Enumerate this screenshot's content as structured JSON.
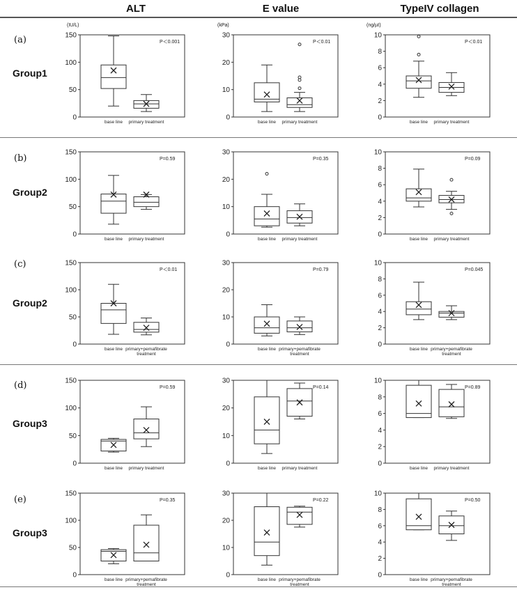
{
  "columns": {
    "alt": "ALT",
    "evalue": "E value",
    "collagen": "TypeIV collagen"
  },
  "units": {
    "alt": "(IU/L)",
    "evalue": "(kPa)",
    "collagen": "(ng/µℓ)"
  },
  "rows": [
    {
      "label": "(a)",
      "group": "Group1"
    },
    {
      "label": "(b)",
      "group": "Group2"
    },
    {
      "label": "(c)",
      "group": "Group2"
    },
    {
      "label": "(d)",
      "group": "Group3"
    },
    {
      "label": "(e)",
      "group": "Group3"
    }
  ],
  "chart_data": [
    {
      "type": "box",
      "title": "ALT",
      "row": "(a)",
      "ylim": [
        0,
        150
      ],
      "yticks": [
        0,
        50,
        100,
        150
      ],
      "pvalue": "P＜0.001",
      "categories": [
        "base line",
        "primary treatment"
      ],
      "boxes": [
        {
          "min": 20,
          "q1": 52,
          "median": 72,
          "q3": 95,
          "max": 148,
          "mean": 85,
          "outliers": []
        },
        {
          "min": 10,
          "q1": 16,
          "median": 24,
          "q3": 30,
          "max": 41,
          "mean": 24,
          "outliers": []
        }
      ]
    },
    {
      "type": "box",
      "title": "E value",
      "row": "(a)",
      "ylim": [
        0,
        30
      ],
      "yticks": [
        0,
        10,
        20,
        30
      ],
      "pvalue": "P＜0.01",
      "categories": [
        "base line",
        "primary treatment"
      ],
      "boxes": [
        {
          "min": 2,
          "q1": 5.5,
          "median": 6.5,
          "q3": 12.5,
          "max": 19,
          "mean": 8.2,
          "outliers": []
        },
        {
          "min": 2,
          "q1": 3.5,
          "median": 4.5,
          "q3": 7,
          "max": 9,
          "mean": 6,
          "outliers": [
            10.5,
            13.5,
            14.5,
            26.5
          ]
        }
      ]
    },
    {
      "type": "box",
      "title": "TypeIV collagen",
      "row": "(a)",
      "ylim": [
        0,
        10
      ],
      "yticks": [
        0,
        2,
        4,
        6,
        8,
        10
      ],
      "pvalue": "P＜0.01",
      "categories": [
        "base line",
        "primary treatment"
      ],
      "boxes": [
        {
          "min": 2.4,
          "q1": 3.5,
          "median": 4.4,
          "q3": 5,
          "max": 6.8,
          "mean": 4.5,
          "outliers": [
            7.6,
            9.8
          ]
        },
        {
          "min": 2.6,
          "q1": 3,
          "median": 3.6,
          "q3": 4.2,
          "max": 5.4,
          "mean": 3.7,
          "outliers": []
        }
      ]
    },
    {
      "type": "box",
      "title": "ALT",
      "row": "(b)",
      "ylim": [
        0,
        150
      ],
      "yticks": [
        0,
        50,
        100,
        150
      ],
      "pvalue": "P=0.59",
      "categories": [
        "base line",
        "primary treatment"
      ],
      "boxes": [
        {
          "min": 18,
          "q1": 38,
          "median": 60,
          "q3": 73,
          "max": 107,
          "mean": 72,
          "outliers": []
        },
        {
          "min": 45,
          "q1": 50,
          "median": 58,
          "q3": 68,
          "max": 72,
          "mean": 72,
          "outliers": []
        }
      ]
    },
    {
      "type": "box",
      "title": "E value",
      "row": "(b)",
      "ylim": [
        0,
        30
      ],
      "yticks": [
        0,
        10,
        20,
        30
      ],
      "pvalue": "P=0.35",
      "categories": [
        "base line",
        "primary treatment"
      ],
      "boxes": [
        {
          "min": 2.5,
          "q1": 3,
          "median": 5.5,
          "q3": 10,
          "max": 14.5,
          "mean": 7.5,
          "outliers": [
            22
          ]
        },
        {
          "min": 3,
          "q1": 4,
          "median": 6,
          "q3": 8.5,
          "max": 11,
          "mean": 6.3,
          "outliers": []
        }
      ]
    },
    {
      "type": "box",
      "title": "TypeIV collagen",
      "row": "(b)",
      "ylim": [
        0,
        10
      ],
      "yticks": [
        0,
        2,
        4,
        6,
        8,
        10
      ],
      "pvalue": "P=0.09",
      "categories": [
        "base line",
        "primary treatment"
      ],
      "boxes": [
        {
          "min": 3.3,
          "q1": 4,
          "median": 4.4,
          "q3": 5.5,
          "max": 7.9,
          "mean": 5.1,
          "outliers": []
        },
        {
          "min": 3,
          "q1": 3.8,
          "median": 4.2,
          "q3": 4.7,
          "max": 5.2,
          "mean": 4.2,
          "outliers": [
            2.5,
            6.6
          ]
        }
      ]
    },
    {
      "type": "box",
      "title": "ALT",
      "row": "(c)",
      "ylim": [
        0,
        150
      ],
      "yticks": [
        0,
        50,
        100,
        150
      ],
      "pvalue": "P＜0.01",
      "categories": [
        "base line",
        "primary+pemafibrate treatment"
      ],
      "boxes": [
        {
          "min": 18,
          "q1": 38,
          "median": 63,
          "q3": 75,
          "max": 110,
          "mean": 75,
          "outliers": []
        },
        {
          "min": 17,
          "q1": 22,
          "median": 27,
          "q3": 40,
          "max": 48,
          "mean": 30,
          "outliers": []
        }
      ]
    },
    {
      "type": "box",
      "title": "E value",
      "row": "(c)",
      "ylim": [
        0,
        30
      ],
      "yticks": [
        0,
        10,
        20,
        30
      ],
      "pvalue": "P=0.79",
      "categories": [
        "base line",
        "primary+pemafibrate treatment"
      ],
      "boxes": [
        {
          "min": 3,
          "q1": 4,
          "median": 6,
          "q3": 10,
          "max": 14.5,
          "mean": 7.5,
          "outliers": []
        },
        {
          "min": 3.5,
          "q1": 4.5,
          "median": 6,
          "q3": 8.5,
          "max": 10,
          "mean": 6.3,
          "outliers": []
        }
      ]
    },
    {
      "type": "box",
      "title": "TypeIV collagen",
      "row": "(c)",
      "ylim": [
        0,
        10
      ],
      "yticks": [
        0,
        2,
        4,
        6,
        8,
        10
      ],
      "pvalue": "P=0.045",
      "categories": [
        "base line",
        "primary+pemafibrate treatment"
      ],
      "boxes": [
        {
          "min": 3,
          "q1": 3.6,
          "median": 4.3,
          "q3": 5.2,
          "max": 7.6,
          "mean": 4.8,
          "outliers": []
        },
        {
          "min": 3,
          "q1": 3.3,
          "median": 3.8,
          "q3": 4,
          "max": 4.7,
          "mean": 3.8,
          "outliers": []
        }
      ]
    },
    {
      "type": "box",
      "title": "ALT",
      "row": "(d)",
      "ylim": [
        0,
        150
      ],
      "yticks": [
        0,
        50,
        100,
        150
      ],
      "pvalue": "P=0.59",
      "categories": [
        "base line",
        "primary treatment"
      ],
      "boxes": [
        {
          "min": 20,
          "q1": 22,
          "median": 40,
          "q3": 43,
          "max": 45,
          "mean": 33,
          "outliers": []
        },
        {
          "min": 30,
          "q1": 44,
          "median": 55,
          "q3": 80,
          "max": 102,
          "mean": 60,
          "outliers": []
        }
      ]
    },
    {
      "type": "box",
      "title": "E value",
      "row": "(d)",
      "ylim": [
        0,
        30
      ],
      "yticks": [
        0,
        10,
        20,
        30
      ],
      "pvalue": "P=0.14",
      "categories": [
        "base line",
        "primary treatment"
      ],
      "boxes": [
        {
          "min": 3.5,
          "q1": 7,
          "median": 12,
          "q3": 24,
          "max": 30,
          "mean": 15,
          "outliers": []
        },
        {
          "min": 16,
          "q1": 17,
          "median": 22.5,
          "q3": 27,
          "max": 29,
          "mean": 22,
          "outliers": []
        }
      ]
    },
    {
      "type": "box",
      "title": "TypeIV collagen",
      "row": "(d)",
      "ylim": [
        0,
        10
      ],
      "yticks": [
        0,
        2,
        4,
        6,
        8,
        10
      ],
      "pvalue": "P=0.89",
      "categories": [
        "base line",
        "primary treatment"
      ],
      "boxes": [
        {
          "min": 5.5,
          "q1": 5.5,
          "median": 6,
          "q3": 9.4,
          "max": 10,
          "mean": 7.2,
          "outliers": []
        },
        {
          "min": 5.4,
          "q1": 5.6,
          "median": 6.8,
          "q3": 8.9,
          "max": 9.5,
          "mean": 7.1,
          "outliers": []
        }
      ]
    },
    {
      "type": "box",
      "title": "ALT",
      "row": "(e)",
      "ylim": [
        0,
        150
      ],
      "yticks": [
        0,
        50,
        100,
        150
      ],
      "pvalue": "P=0.35",
      "categories": [
        "base line",
        "primary+pemafibrate treatment"
      ],
      "boxes": [
        {
          "min": 20,
          "q1": 25,
          "median": 43,
          "q3": 46,
          "max": 48,
          "mean": 36,
          "outliers": []
        },
        {
          "min": 25,
          "q1": 25,
          "median": 40,
          "q3": 91,
          "max": 110,
          "mean": 55,
          "outliers": []
        }
      ]
    },
    {
      "type": "box",
      "title": "E value",
      "row": "(e)",
      "ylim": [
        0,
        30
      ],
      "yticks": [
        0,
        10,
        20,
        30
      ],
      "pvalue": "P=0.22",
      "categories": [
        "base line",
        "primary+pemafibrate treatment"
      ],
      "boxes": [
        {
          "min": 3.5,
          "q1": 7,
          "median": 12,
          "q3": 25,
          "max": 30,
          "mean": 15.5,
          "outliers": []
        },
        {
          "min": 17.5,
          "q1": 18.5,
          "median": 23,
          "q3": 24.8,
          "max": 25.2,
          "mean": 22,
          "outliers": []
        }
      ]
    },
    {
      "type": "box",
      "title": "TypeIV collagen",
      "row": "(e)",
      "ylim": [
        0,
        10
      ],
      "yticks": [
        0,
        2,
        4,
        6,
        8,
        10
      ],
      "pvalue": "P=0.50",
      "categories": [
        "base line",
        "primary+pemafibrate treatment"
      ],
      "boxes": [
        {
          "min": 5.5,
          "q1": 5.5,
          "median": 6,
          "q3": 9.3,
          "max": 10,
          "mean": 7.1,
          "outliers": []
        },
        {
          "min": 4.2,
          "q1": 5,
          "median": 6,
          "q3": 7.2,
          "max": 7.8,
          "mean": 6.1,
          "outliers": []
        }
      ]
    }
  ]
}
